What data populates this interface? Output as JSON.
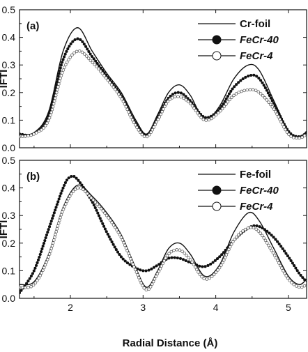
{
  "chart_data": [
    {
      "type": "line",
      "panel_label": "(a)",
      "xlabel": "",
      "ylabel": "IFTI",
      "xlim": [
        1.3,
        5.25
      ],
      "ylim": [
        0.0,
        0.5
      ],
      "yticks": [
        "0.0",
        "0.1",
        "0.2",
        "0.3",
        "0.4",
        "0.5"
      ],
      "legend_position": "top-right",
      "series": [
        {
          "name": "Cr-foil",
          "style": "line",
          "x": [
            1.3,
            1.5,
            1.7,
            1.9,
            2.1,
            2.3,
            2.5,
            2.7,
            2.9,
            3.05,
            3.2,
            3.35,
            3.5,
            3.65,
            3.85,
            4.05,
            4.25,
            4.45,
            4.6,
            4.8,
            5.0,
            5.15,
            5.25
          ],
          "values": [
            0.05,
            0.055,
            0.13,
            0.35,
            0.435,
            0.35,
            0.27,
            0.2,
            0.1,
            0.05,
            0.12,
            0.2,
            0.228,
            0.19,
            0.1,
            0.15,
            0.25,
            0.3,
            0.28,
            0.17,
            0.06,
            0.04,
            0.06
          ]
        },
        {
          "name": "FeCr-40",
          "style": "filled-circles",
          "x": [
            1.3,
            1.5,
            1.7,
            1.9,
            2.1,
            2.3,
            2.5,
            2.7,
            2.9,
            3.05,
            3.2,
            3.35,
            3.5,
            3.65,
            3.85,
            4.05,
            4.25,
            4.45,
            4.6,
            4.8,
            5.0,
            5.15,
            5.25
          ],
          "values": [
            0.05,
            0.05,
            0.12,
            0.32,
            0.395,
            0.33,
            0.26,
            0.19,
            0.09,
            0.045,
            0.11,
            0.18,
            0.2,
            0.17,
            0.11,
            0.14,
            0.22,
            0.26,
            0.25,
            0.16,
            0.06,
            0.04,
            0.055
          ]
        },
        {
          "name": "FeCr-4",
          "style": "open-circles",
          "x": [
            1.3,
            1.5,
            1.7,
            1.9,
            2.1,
            2.3,
            2.5,
            2.7,
            2.9,
            3.05,
            3.2,
            3.35,
            3.5,
            3.65,
            3.85,
            4.05,
            4.25,
            4.45,
            4.6,
            4.8,
            5.0,
            5.15,
            5.25
          ],
          "values": [
            0.04,
            0.05,
            0.1,
            0.28,
            0.35,
            0.31,
            0.25,
            0.18,
            0.08,
            0.04,
            0.1,
            0.17,
            0.185,
            0.16,
            0.1,
            0.13,
            0.19,
            0.21,
            0.2,
            0.14,
            0.05,
            0.035,
            0.05
          ]
        }
      ]
    },
    {
      "type": "line",
      "panel_label": "(b)",
      "xlabel": "Radial Distance (Å)",
      "ylabel": "IFTI",
      "xlim": [
        1.3,
        5.25
      ],
      "ylim": [
        0.0,
        0.5
      ],
      "xticks": [
        "2",
        "3",
        "4",
        "5"
      ],
      "yticks": [
        "0.0",
        "0.1",
        "0.2",
        "0.3",
        "0.4",
        "0.5"
      ],
      "legend_position": "top-right",
      "series": [
        {
          "name": "Fe-foil",
          "style": "line",
          "x": [
            1.3,
            1.5,
            1.7,
            1.9,
            2.1,
            2.3,
            2.5,
            2.7,
            2.9,
            3.05,
            3.2,
            3.35,
            3.5,
            3.65,
            3.85,
            4.05,
            4.25,
            4.45,
            4.6,
            4.8,
            5.0,
            5.15,
            5.25
          ],
          "values": [
            0.05,
            0.06,
            0.16,
            0.33,
            0.41,
            0.37,
            0.31,
            0.23,
            0.11,
            0.04,
            0.1,
            0.18,
            0.2,
            0.16,
            0.08,
            0.12,
            0.24,
            0.31,
            0.28,
            0.18,
            0.08,
            0.05,
            0.07
          ]
        },
        {
          "name": "FeCr-40",
          "style": "filled-circles",
          "x": [
            1.3,
            1.5,
            1.7,
            1.9,
            2.0,
            2.1,
            2.3,
            2.5,
            2.7,
            2.9,
            3.05,
            3.2,
            3.35,
            3.5,
            3.65,
            3.85,
            4.05,
            4.25,
            4.45,
            4.6,
            4.8,
            5.0,
            5.15,
            5.25
          ],
          "values": [
            0.02,
            0.1,
            0.25,
            0.4,
            0.44,
            0.43,
            0.35,
            0.24,
            0.15,
            0.11,
            0.1,
            0.12,
            0.145,
            0.145,
            0.13,
            0.115,
            0.15,
            0.21,
            0.255,
            0.26,
            0.22,
            0.15,
            0.09,
            0.06
          ]
        },
        {
          "name": "FeCr-4",
          "style": "open-circles",
          "x": [
            1.3,
            1.5,
            1.7,
            1.9,
            2.1,
            2.3,
            2.5,
            2.7,
            2.9,
            3.05,
            3.2,
            3.35,
            3.5,
            3.65,
            3.85,
            4.05,
            4.25,
            4.45,
            4.6,
            4.8,
            5.0,
            5.15,
            5.25
          ],
          "values": [
            0.04,
            0.05,
            0.15,
            0.32,
            0.4,
            0.36,
            0.3,
            0.22,
            0.1,
            0.03,
            0.09,
            0.16,
            0.175,
            0.14,
            0.07,
            0.11,
            0.21,
            0.255,
            0.24,
            0.16,
            0.07,
            0.04,
            0.05
          ]
        }
      ]
    }
  ]
}
